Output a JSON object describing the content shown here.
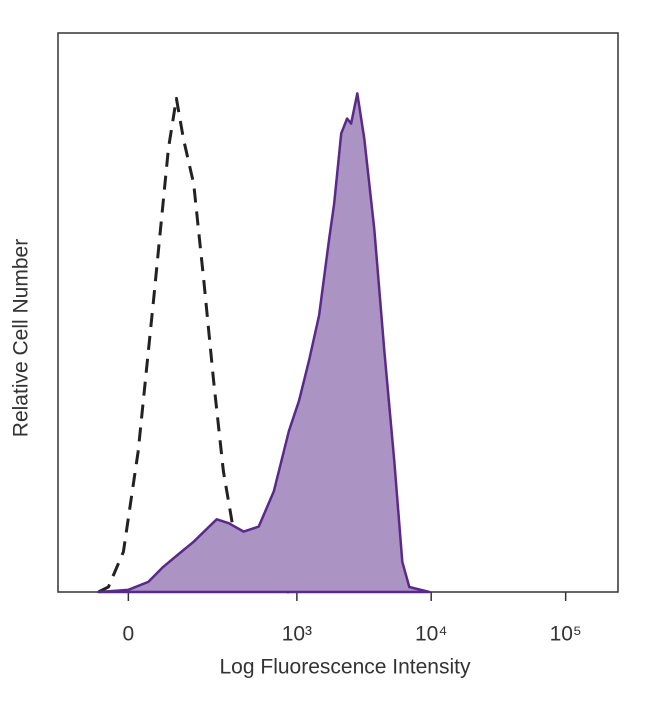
{
  "chart_data": {
    "type": "histogram-overlay",
    "x_label": "Log Fluorescence Intensity",
    "y_label": "Relative Cell Number",
    "xscale": "biexponential",
    "xlim": [
      -170,
      245000
    ],
    "ylim": [
      0,
      100
    ],
    "xticks": [
      0,
      {
        "value": 1000,
        "label": "10³"
      },
      {
        "value": 10000,
        "label": "10⁴"
      },
      {
        "value": 100000,
        "label": "10⁵"
      }
    ],
    "series": [
      {
        "color": "#5a2a8a",
        "fill": "#ab93c4",
        "line_style": "solid",
        "x": [
          -60,
          0,
          39,
          71,
          109,
          153,
          209,
          242,
          302,
          396,
          516,
          671,
          872,
          1037,
          1232,
          1465,
          1740,
          1896,
          2140,
          2370,
          2535,
          2820,
          3180,
          3775,
          4480,
          5320,
          6100,
          6880,
          9700
        ],
        "values": [
          0,
          0.4,
          1.8,
          4.5,
          6.8,
          9.0,
          11.7,
          13.0,
          12.3,
          10.8,
          11.7,
          18.0,
          28.8,
          34.2,
          41.4,
          49.5,
          63.1,
          69.4,
          82.0,
          84.7,
          83.8,
          89.2,
          81.1,
          64.9,
          43.2,
          23.4,
          5.4,
          0.9,
          0
        ]
      },
      {
        "color": "#222222",
        "fill": "none",
        "line_style": "dashed",
        "x": [
          -60,
          -39,
          -9.6,
          19,
          50,
          83,
          103,
          122,
          153,
          188,
          228,
          274,
          331,
          396,
          516,
          872
        ],
        "values": [
          0,
          0.9,
          7.2,
          25.2,
          52.3,
          79.3,
          88.3,
          81.1,
          73.0,
          55.9,
          37.8,
          21.6,
          10.8,
          3.6,
          0.9,
          0
        ]
      }
    ]
  }
}
